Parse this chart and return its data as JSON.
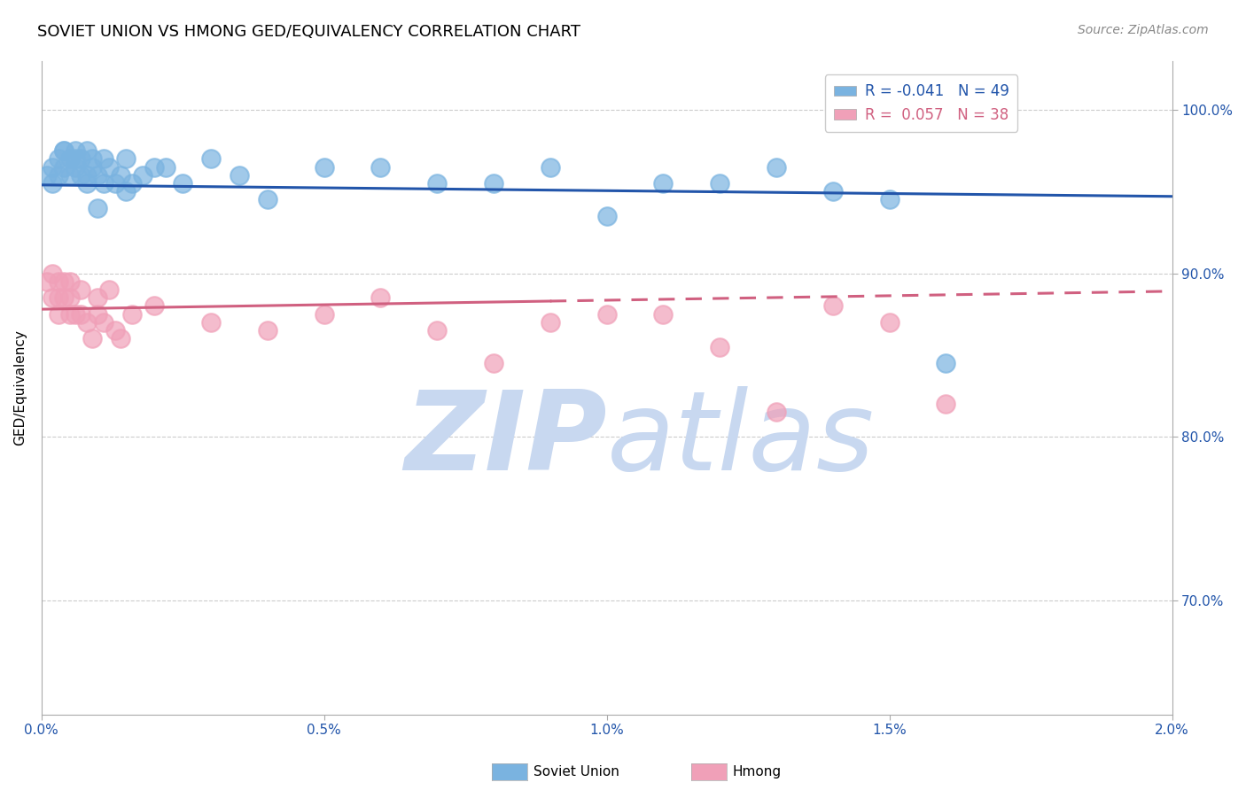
{
  "title": "SOVIET UNION VS HMONG GED/EQUIVALENCY CORRELATION CHART",
  "source": "Source: ZipAtlas.com",
  "ylabel": "GED/Equivalency",
  "xlim": [
    0.0,
    0.02
  ],
  "ylim": [
    0.63,
    1.03
  ],
  "yticks": [
    0.7,
    0.8,
    0.9,
    1.0
  ],
  "ytick_labels": [
    "70.0%",
    "80.0%",
    "90.0%",
    "100.0%"
  ],
  "xtick_labels": [
    "0.0%",
    "0.5%",
    "1.0%",
    "1.5%",
    "2.0%"
  ],
  "xticks": [
    0.0,
    0.005,
    0.01,
    0.015,
    0.02
  ],
  "soviet_color": "#7ab3e0",
  "hmong_color": "#f0a0b8",
  "soviet_line_color": "#2255aa",
  "hmong_line_color": "#d06080",
  "background_color": "#ffffff",
  "grid_color": "#cccccc",
  "R_soviet": -0.041,
  "N_soviet": 49,
  "R_hmong": 0.057,
  "N_hmong": 38,
  "soviet_x": [
    0.0001,
    0.0002,
    0.0002,
    0.0003,
    0.0003,
    0.0004,
    0.0004,
    0.0005,
    0.0005,
    0.0006,
    0.0006,
    0.0007,
    0.0007,
    0.0008,
    0.0008,
    0.0009,
    0.001,
    0.001,
    0.0011,
    0.0012,
    0.0013,
    0.0014,
    0.0015,
    0.0016,
    0.0018,
    0.002,
    0.0022,
    0.0025,
    0.003,
    0.0035,
    0.004,
    0.005,
    0.006,
    0.007,
    0.008,
    0.009,
    0.01,
    0.011,
    0.012,
    0.013,
    0.014,
    0.015,
    0.016,
    0.0004,
    0.0006,
    0.0008,
    0.0009,
    0.0011,
    0.0015
  ],
  "soviet_y": [
    0.96,
    0.955,
    0.965,
    0.96,
    0.97,
    0.975,
    0.965,
    0.97,
    0.96,
    0.975,
    0.965,
    0.96,
    0.97,
    0.96,
    0.975,
    0.965,
    0.94,
    0.96,
    0.955,
    0.965,
    0.955,
    0.96,
    0.95,
    0.955,
    0.96,
    0.965,
    0.965,
    0.955,
    0.97,
    0.96,
    0.945,
    0.965,
    0.965,
    0.955,
    0.955,
    0.965,
    0.935,
    0.955,
    0.955,
    0.965,
    0.95,
    0.945,
    0.845,
    0.975,
    0.97,
    0.955,
    0.97,
    0.97,
    0.97
  ],
  "hmong_x": [
    0.0001,
    0.0002,
    0.0002,
    0.0003,
    0.0003,
    0.0003,
    0.0004,
    0.0004,
    0.0005,
    0.0005,
    0.0006,
    0.0007,
    0.0008,
    0.001,
    0.001,
    0.0012,
    0.0014,
    0.0016,
    0.002,
    0.003,
    0.004,
    0.005,
    0.006,
    0.007,
    0.008,
    0.009,
    0.01,
    0.011,
    0.012,
    0.013,
    0.014,
    0.015,
    0.016,
    0.0005,
    0.0007,
    0.0009,
    0.0011,
    0.0013
  ],
  "hmong_y": [
    0.895,
    0.9,
    0.885,
    0.895,
    0.885,
    0.875,
    0.885,
    0.895,
    0.885,
    0.895,
    0.875,
    0.89,
    0.87,
    0.885,
    0.875,
    0.89,
    0.86,
    0.875,
    0.88,
    0.87,
    0.865,
    0.875,
    0.885,
    0.865,
    0.845,
    0.87,
    0.875,
    0.875,
    0.855,
    0.815,
    0.88,
    0.87,
    0.82,
    0.875,
    0.875,
    0.86,
    0.87,
    0.865
  ],
  "watermark_top": "ZIP",
  "watermark_bottom": "atlas",
  "watermark_color": "#c8d8f0",
  "title_fontsize": 13,
  "axis_label_fontsize": 11,
  "tick_fontsize": 11,
  "legend_fontsize": 12,
  "source_fontsize": 10
}
